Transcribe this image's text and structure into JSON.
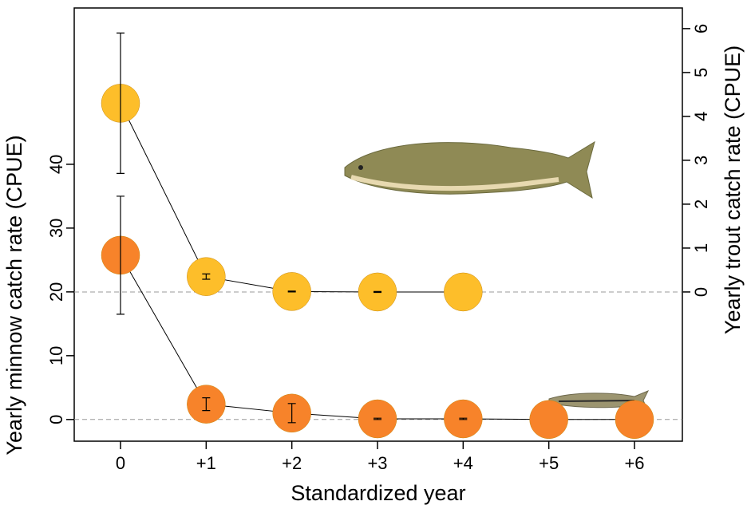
{
  "chart_data": {
    "type": "dual-axis-dot",
    "x_label": "Standardized year",
    "y_label": "Yearly minnow catch rate (CPUE)",
    "y2_label": "Yearly trout catch rate (CPUE)",
    "categories": [
      "0",
      "+1",
      "+2",
      "+3",
      "+4",
      "+5",
      "+6"
    ],
    "ylim": [
      -3.4,
      64.5
    ],
    "yticks": [
      0,
      10,
      20,
      30,
      40
    ],
    "y2lim": [
      -3.4,
      6.47
    ],
    "y2ticks": [
      0,
      1,
      2,
      3,
      4,
      5,
      6
    ],
    "reference_lines": [
      {
        "axis": "y",
        "value": 0
      },
      {
        "axis": "y2",
        "value": 0
      }
    ],
    "series": [
      {
        "name": "Trout",
        "color": "#fdbe2a",
        "axis": "y2",
        "values": [
          4.3,
          0.35,
          0.01,
          0.0,
          0.0,
          null,
          null
        ],
        "errors": [
          1.6,
          0.06,
          0.01,
          0.01,
          null,
          null,
          null
        ]
      },
      {
        "name": "Minnow",
        "color": "#f7832a",
        "axis": "y",
        "values": [
          25.75,
          2.4,
          1.0,
          0.1,
          0.1,
          0,
          0
        ],
        "errors": [
          9.25,
          1.0,
          1.5,
          0.1,
          0.1,
          null,
          null
        ]
      }
    ]
  }
}
